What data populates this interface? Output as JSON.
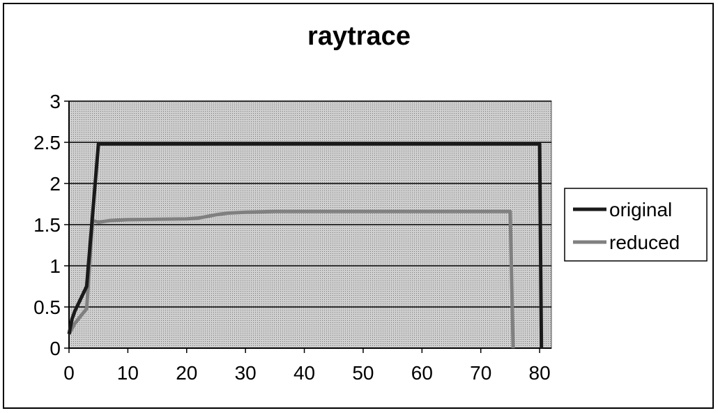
{
  "chart_data": {
    "type": "line",
    "title": "raytrace",
    "xlabel": "",
    "ylabel": "",
    "xlim": [
      0,
      82
    ],
    "ylim": [
      0,
      3
    ],
    "x_ticks": [
      "0",
      "10",
      "20",
      "30",
      "40",
      "50",
      "60",
      "70",
      "80"
    ],
    "y_ticks": [
      "0",
      "0.5",
      "1",
      "1.5",
      "2",
      "2.5",
      "3"
    ],
    "grid": true,
    "legend_position": "right",
    "series": [
      {
        "name": "original",
        "color": "#1a1a1a",
        "x": [
          0,
          0.5,
          1,
          3,
          5,
          6,
          20,
          40,
          60,
          80,
          80.3
        ],
        "y": [
          0.17,
          0.35,
          0.45,
          0.75,
          2.48,
          2.48,
          2.48,
          2.48,
          2.48,
          2.48,
          0
        ]
      },
      {
        "name": "reduced",
        "color": "#808080",
        "x": [
          0,
          1,
          3,
          4,
          5,
          7,
          10,
          20,
          22,
          25,
          27,
          30,
          35,
          40,
          50,
          60,
          70,
          75,
          75.5
        ],
        "y": [
          0.17,
          0.3,
          0.48,
          1.55,
          1.53,
          1.55,
          1.56,
          1.57,
          1.58,
          1.62,
          1.64,
          1.65,
          1.66,
          1.66,
          1.66,
          1.66,
          1.66,
          1.66,
          0
        ]
      }
    ]
  }
}
